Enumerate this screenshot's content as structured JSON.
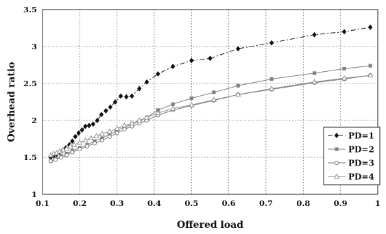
{
  "chart_data": {
    "type": "line",
    "title": "",
    "xlabel": "Offered load",
    "ylabel": "Overhead ratio",
    "xlim": [
      0.1,
      1.0
    ],
    "ylim": [
      1.0,
      3.5
    ],
    "xticks": [
      0.1,
      0.2,
      0.3,
      0.4,
      0.5,
      0.6,
      0.7,
      0.8,
      0.9,
      1.0
    ],
    "xtick_labels": [
      "0.1",
      "0.2",
      "0.3",
      "0.4",
      "0.5",
      "0.6",
      "0.7",
      "0.8",
      "0.9",
      "1"
    ],
    "yticks": [
      1.0,
      1.5,
      2.0,
      2.5,
      3.0,
      3.5
    ],
    "ytick_labels": [
      "1",
      "1.5",
      "2",
      "2.5",
      "3",
      "3.5"
    ],
    "grid": true,
    "legend_position": "right",
    "series": [
      {
        "name": "PD=1",
        "color": "#111111",
        "marker": "diamond",
        "dash": "7 3 2 3",
        "x": [
          0.122,
          0.13,
          0.138,
          0.146,
          0.155,
          0.163,
          0.172,
          0.18,
          0.188,
          0.197,
          0.206,
          0.215,
          0.225,
          0.236,
          0.247,
          0.258,
          0.27,
          0.282,
          0.295,
          0.31,
          0.325,
          0.34,
          0.36,
          0.38,
          0.41,
          0.45,
          0.5,
          0.55,
          0.625,
          0.715,
          0.83,
          0.91,
          0.98
        ],
        "y": [
          1.5,
          1.52,
          1.54,
          1.57,
          1.6,
          1.63,
          1.67,
          1.72,
          1.78,
          1.83,
          1.87,
          1.92,
          1.93,
          1.95,
          2.0,
          2.08,
          2.13,
          2.18,
          2.25,
          2.33,
          2.32,
          2.33,
          2.43,
          2.52,
          2.63,
          2.73,
          2.81,
          2.84,
          2.97,
          3.05,
          3.16,
          3.2,
          3.26
        ]
      },
      {
        "name": "PD=2",
        "color": "#808080",
        "marker": "square",
        "dash": "",
        "x": [
          0.122,
          0.135,
          0.15,
          0.165,
          0.18,
          0.2,
          0.22,
          0.24,
          0.26,
          0.28,
          0.3,
          0.32,
          0.34,
          0.36,
          0.38,
          0.41,
          0.45,
          0.5,
          0.56,
          0.625,
          0.715,
          0.83,
          0.91,
          0.98
        ],
        "y": [
          1.45,
          1.48,
          1.52,
          1.55,
          1.59,
          1.63,
          1.67,
          1.72,
          1.76,
          1.81,
          1.86,
          1.91,
          1.95,
          1.99,
          2.04,
          2.14,
          2.22,
          2.3,
          2.38,
          2.47,
          2.56,
          2.64,
          2.7,
          2.74
        ]
      },
      {
        "name": "PD=3",
        "color": "#7a7a7a",
        "marker": "circle",
        "dash": "",
        "x": [
          0.122,
          0.135,
          0.15,
          0.165,
          0.18,
          0.2,
          0.22,
          0.24,
          0.26,
          0.28,
          0.3,
          0.32,
          0.34,
          0.36,
          0.38,
          0.41,
          0.45,
          0.5,
          0.56,
          0.625,
          0.715,
          0.83,
          0.91,
          0.98
        ],
        "y": [
          1.45,
          1.47,
          1.5,
          1.53,
          1.57,
          1.61,
          1.65,
          1.69,
          1.73,
          1.78,
          1.83,
          1.88,
          1.92,
          1.96,
          2.0,
          2.07,
          2.14,
          2.2,
          2.27,
          2.35,
          2.42,
          2.51,
          2.56,
          2.61
        ]
      },
      {
        "name": "PD=4",
        "color": "#8a8a8a",
        "marker": "triangle",
        "dash": "",
        "x": [
          0.122,
          0.13,
          0.138,
          0.146,
          0.155,
          0.165,
          0.175,
          0.185,
          0.2,
          0.215,
          0.23,
          0.245,
          0.26,
          0.28,
          0.3,
          0.32,
          0.34,
          0.36,
          0.38,
          0.41,
          0.45,
          0.5,
          0.56,
          0.625,
          0.715,
          0.83,
          0.91,
          0.98
        ],
        "y": [
          1.53,
          1.55,
          1.56,
          1.58,
          1.6,
          1.62,
          1.65,
          1.67,
          1.7,
          1.73,
          1.76,
          1.79,
          1.82,
          1.85,
          1.89,
          1.93,
          1.96,
          2.0,
          2.04,
          2.1,
          2.16,
          2.21,
          2.28,
          2.35,
          2.43,
          2.52,
          2.57,
          2.61
        ]
      }
    ]
  }
}
